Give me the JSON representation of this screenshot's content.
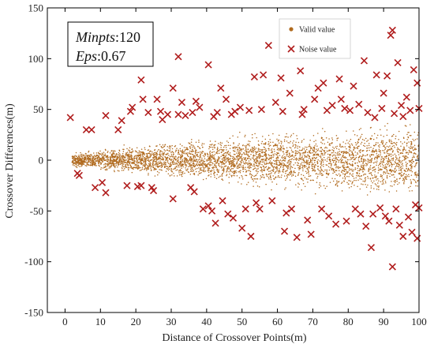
{
  "chart_data": {
    "type": "scatter",
    "xlabel": "Distance of Crossover Points(m)",
    "ylabel": "Crossover Differences(m)",
    "xlim": [
      -5,
      100
    ],
    "ylim": [
      -150,
      150
    ],
    "xticks": [
      0,
      10,
      20,
      30,
      40,
      50,
      60,
      70,
      80,
      90,
      100
    ],
    "yticks": [
      -150,
      -100,
      -50,
      0,
      50,
      100,
      150
    ],
    "xtick_labels": [
      "0",
      "10",
      "20",
      "30",
      "40",
      "50",
      "60",
      "70",
      "80",
      "90",
      "100"
    ],
    "ytick_labels": [
      "-150",
      "-100",
      "-50",
      "0",
      "50",
      "100",
      "150"
    ],
    "grid": false,
    "legend_position": "top-right",
    "annotation": {
      "line1_label": "Minpts",
      "line1_value": ":120",
      "line2_label": "Eps",
      "line2_value": ":0.67"
    },
    "series": [
      {
        "name": "Valid value",
        "marker": "dot",
        "color": "#b06a1e",
        "density_note": "approx. 5000 points distributed roughly uniformly over x in [2, 100]; y spreads within about ±8 m near x=2 widening to about ±38 m at x=100",
        "envelope": {
          "x": [
            0,
            20,
            40,
            60,
            80,
            100
          ],
          "y_halfwidth": [
            6,
            15,
            22,
            28,
            33,
            38
          ]
        }
      },
      {
        "name": "Noise value",
        "marker": "x",
        "color": "#b01c1c",
        "points": [
          [
            1.5,
            42
          ],
          [
            3.5,
            -13
          ],
          [
            4,
            -15
          ],
          [
            6,
            30
          ],
          [
            7.5,
            30
          ],
          [
            8.5,
            -27
          ],
          [
            10.5,
            -22
          ],
          [
            11.5,
            44
          ],
          [
            11.5,
            -32
          ],
          [
            15,
            30
          ],
          [
            16,
            39
          ],
          [
            17.5,
            -25
          ],
          [
            18.5,
            48
          ],
          [
            19,
            52
          ],
          [
            20.5,
            -26
          ],
          [
            21.5,
            79
          ],
          [
            21.5,
            -25
          ],
          [
            22,
            60
          ],
          [
            23.5,
            47
          ],
          [
            24.5,
            -27
          ],
          [
            25,
            -30
          ],
          [
            26,
            60
          ],
          [
            27,
            48
          ],
          [
            27.5,
            40
          ],
          [
            29,
            45
          ],
          [
            30.5,
            71
          ],
          [
            30.5,
            -38
          ],
          [
            32,
            102
          ],
          [
            32,
            45
          ],
          [
            33,
            57
          ],
          [
            34,
            44
          ],
          [
            35.5,
            -27
          ],
          [
            36.5,
            -31
          ],
          [
            37,
            58
          ],
          [
            38,
            52
          ],
          [
            39,
            -48
          ],
          [
            40.5,
            94
          ],
          [
            40.5,
            -45
          ],
          [
            41.5,
            -50
          ],
          [
            42,
            43
          ],
          [
            42.5,
            -62
          ],
          [
            43,
            47
          ],
          [
            44,
            71
          ],
          [
            44.5,
            -40
          ],
          [
            45.5,
            60
          ],
          [
            46,
            -53
          ],
          [
            47.5,
            -57
          ],
          [
            48,
            48
          ],
          [
            49.5,
            52
          ],
          [
            50,
            -67
          ],
          [
            51,
            -48
          ],
          [
            52,
            49
          ],
          [
            52.5,
            -75
          ],
          [
            53.5,
            82
          ],
          [
            54,
            -42
          ],
          [
            55.5,
            50
          ],
          [
            55,
            -48
          ],
          [
            56,
            84
          ],
          [
            57.5,
            113
          ],
          [
            58.5,
            -40
          ],
          [
            59.5,
            57
          ],
          [
            61,
            81
          ],
          [
            62,
            -70
          ],
          [
            62.5,
            -52
          ],
          [
            63.5,
            66
          ],
          [
            64,
            -48
          ],
          [
            65.5,
            -76
          ],
          [
            66.5,
            88
          ],
          [
            67.5,
            50
          ],
          [
            68.5,
            -59
          ],
          [
            69.5,
            -73
          ],
          [
            70.5,
            60
          ],
          [
            71.5,
            71
          ],
          [
            72.5,
            -48
          ],
          [
            73,
            76
          ],
          [
            74.5,
            -55
          ],
          [
            75.5,
            54
          ],
          [
            76.5,
            -63
          ],
          [
            77.5,
            80
          ],
          [
            78,
            60
          ],
          [
            79.5,
            -60
          ],
          [
            80.5,
            49
          ],
          [
            81.5,
            73
          ],
          [
            82,
            -48
          ],
          [
            83,
            55
          ],
          [
            83.5,
            -53
          ],
          [
            84.5,
            98
          ],
          [
            85,
            -65
          ],
          [
            85.5,
            47
          ],
          [
            86.5,
            -86
          ],
          [
            87,
            -53
          ],
          [
            88,
            84
          ],
          [
            89,
            -47
          ],
          [
            89.5,
            51
          ],
          [
            90,
            66
          ],
          [
            90.5,
            -55
          ],
          [
            91,
            83
          ],
          [
            91.5,
            -60
          ],
          [
            92,
            123
          ],
          [
            92.5,
            -105
          ],
          [
            92.5,
            128
          ],
          [
            93,
            46
          ],
          [
            93.5,
            -48
          ],
          [
            94,
            96
          ],
          [
            94.5,
            -64
          ],
          [
            95,
            54
          ],
          [
            95.5,
            -75
          ],
          [
            96.5,
            62
          ],
          [
            97,
            -56
          ],
          [
            97.5,
            49
          ],
          [
            98,
            -71
          ],
          [
            98.5,
            89
          ],
          [
            99,
            -44
          ],
          [
            99.5,
            76
          ],
          [
            99.5,
            -77
          ],
          [
            100,
            51
          ],
          [
            100,
            -47
          ],
          [
            95.5,
            43
          ],
          [
            87.5,
            42
          ],
          [
            67,
            45
          ],
          [
            47,
            45
          ],
          [
            36,
            47
          ],
          [
            61.5,
            48
          ],
          [
            79,
            51
          ],
          [
            74,
            49
          ]
        ]
      }
    ]
  }
}
